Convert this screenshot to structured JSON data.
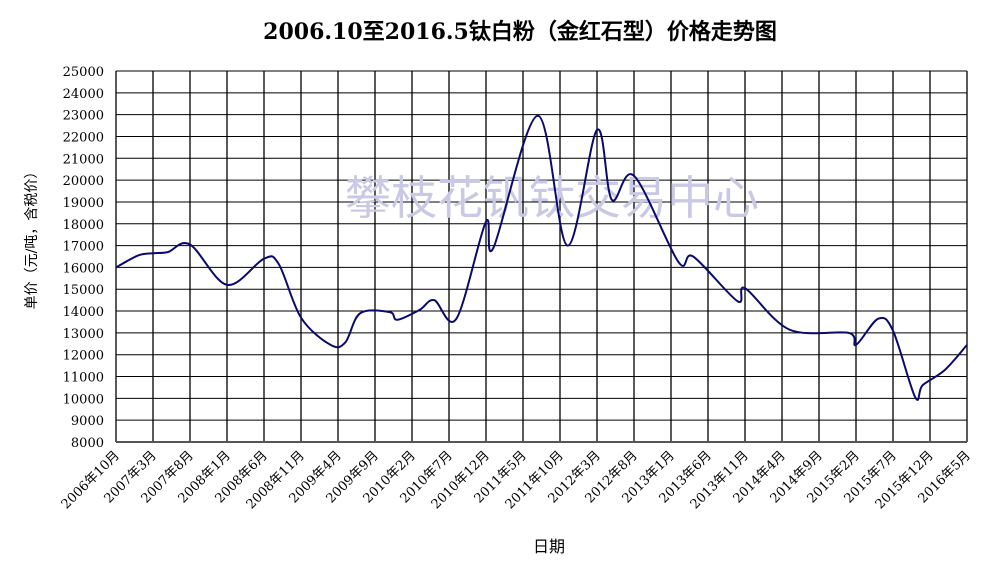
{
  "chart_data": {
    "type": "line",
    "title": "2006.10至2016.5钛白粉（金红石型）价格走势图",
    "xlabel": "日期",
    "ylabel": "单价（元/吨，含税价）",
    "watermark": "攀枝花钒钛交易中心",
    "ylim": [
      8000,
      25000
    ],
    "y_ticks": [
      8000,
      9000,
      10000,
      11000,
      12000,
      13000,
      14000,
      15000,
      16000,
      17000,
      18000,
      19000,
      20000,
      21000,
      22000,
      23000,
      24000,
      25000
    ],
    "x_ticks": [
      "2006年10月",
      "2007年3月",
      "2007年8月",
      "2008年1月",
      "2008年6月",
      "2008年11月",
      "2009年4月",
      "2009年9月",
      "2010年2月",
      "2010年7月",
      "2010年12月",
      "2011年5月",
      "2011年10月",
      "2012年3月",
      "2012年8月",
      "2013年1月",
      "2013年6月",
      "2013年11月",
      "2014年4月",
      "2014年9月",
      "2015年2月",
      "2015年7月",
      "2015年12月",
      "2016年5月"
    ],
    "xlim": [
      "2006-10",
      "2016-05"
    ],
    "grid": true,
    "line_color": "#0a0a6e",
    "series": [
      {
        "x": [
          "2006-10",
          "2007-01",
          "2007-03",
          "2007-05",
          "2007-08",
          "2008-01",
          "2008-06",
          "2008-08",
          "2008-11",
          "2009-03",
          "2009-05",
          "2009-07",
          "2009-11",
          "2009-12",
          "2010-03",
          "2010-05",
          "2010-08",
          "2010-12",
          "2011-01",
          "2011-07",
          "2011-11",
          "2012-03",
          "2012-05",
          "2012-08",
          "2013-02",
          "2013-04",
          "2013-10",
          "2013-11",
          "2014-05",
          "2015-01",
          "2015-02",
          "2015-05",
          "2015-07",
          "2015-10",
          "2015-11",
          "2016-02",
          "2016-05"
        ],
        "y": [
          16000,
          16550,
          16650,
          16700,
          17050,
          15200,
          16400,
          16150,
          13700,
          12450,
          12570,
          13900,
          13950,
          13600,
          14050,
          14500,
          13650,
          18100,
          16900,
          22950,
          17000,
          22300,
          19100,
          20200,
          16250,
          16500,
          14450,
          15050,
          13150,
          13000,
          12450,
          13650,
          13100,
          10050,
          10600,
          11300,
          12450
        ]
      }
    ]
  }
}
